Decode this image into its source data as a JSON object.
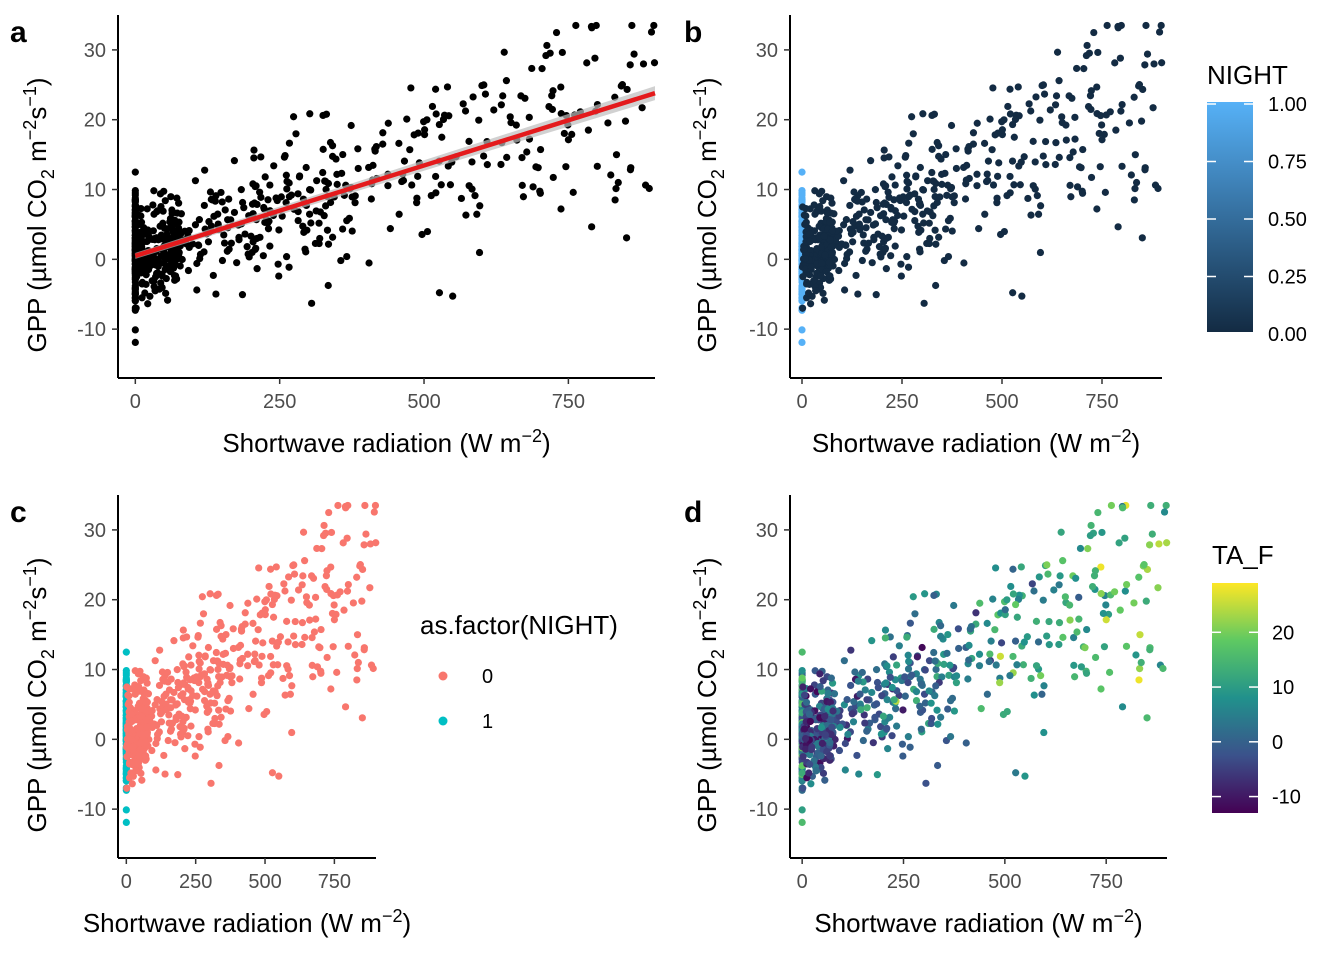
{
  "chart_data": [
    {
      "panel": "a",
      "type": "scatter",
      "title": "",
      "xlabel": "Shortwave radiation (W m^-2)",
      "ylabel": "GPP (µmol CO2 m^-2 s^-1)",
      "xlim": [
        -30,
        900
      ],
      "ylim": [
        -17,
        35
      ],
      "xticks": [
        0,
        250,
        500,
        750
      ],
      "yticks": [
        -10,
        0,
        10,
        20,
        30
      ],
      "point_color": "#000000",
      "regression_line": {
        "x": [
          0,
          900
        ],
        "y": [
          0.5,
          23.8
        ],
        "color": "#e41a1c",
        "ci_color": "#bdbdbd"
      },
      "color_mapping": "none"
    },
    {
      "panel": "b",
      "type": "scatter",
      "xlabel": "Shortwave radiation (W m^-2)",
      "ylabel": "GPP (µmol CO2 m^-2 s^-1)",
      "xlim": [
        -30,
        900
      ],
      "ylim": [
        -17,
        35
      ],
      "xticks": [
        0,
        250,
        500,
        750
      ],
      "yticks": [
        -10,
        0,
        10,
        20,
        30
      ],
      "color_mapping": "NIGHT (continuous)",
      "legend": {
        "title": "NIGHT",
        "ticks": [
          "1.00",
          "0.75",
          "0.50",
          "0.25",
          "0.00"
        ],
        "low_color": "#132b43",
        "high_color": "#56b1f7",
        "position": "right"
      }
    },
    {
      "panel": "c",
      "type": "scatter",
      "xlabel": "Shortwave radiation (W m^-2)",
      "ylabel": "GPP (µmol CO2 m^-2 s^-1)",
      "xlim": [
        -30,
        900
      ],
      "ylim": [
        -17,
        35
      ],
      "xticks": [
        0,
        250,
        500,
        750
      ],
      "yticks": [
        -10,
        0,
        10,
        20,
        30
      ],
      "color_mapping": "as.factor(NIGHT)",
      "legend": {
        "title": "as.factor(NIGHT)",
        "entries": [
          {
            "label": "0",
            "color": "#f8766d"
          },
          {
            "label": "1",
            "color": "#00bfc4"
          }
        ],
        "position": "right"
      }
    },
    {
      "panel": "d",
      "type": "scatter",
      "xlabel": "Shortwave radiation (W m^-2)",
      "ylabel": "GPP (µmol CO2 m^-2 s^-1)",
      "xlim": [
        -30,
        900
      ],
      "ylim": [
        -17,
        35
      ],
      "xticks": [
        0,
        250,
        500,
        750
      ],
      "yticks": [
        -10,
        0,
        10,
        20,
        30
      ],
      "color_mapping": "TA_F (continuous, viridis)",
      "legend": {
        "title": "TA_F",
        "ticks": [
          "20",
          "10",
          "0",
          "-10"
        ],
        "range": [
          -13,
          29
        ],
        "position": "right"
      }
    }
  ],
  "labels": {
    "panel_a": "a",
    "panel_b": "b",
    "panel_c": "c",
    "panel_d": "d",
    "xlabel_main": "Shortwave radiation (W m",
    "xlabel_sup": "−2",
    "xlabel_close": ")",
    "ylabel_prefix": "GPP (µmol CO",
    "ylabel_sub": "2",
    "ylabel_mid": " m",
    "ylabel_sup1": "−2",
    "ylabel_s": "s",
    "ylabel_sup2": "−1",
    "ylabel_close": ")",
    "xtick_labels": [
      "0",
      "250",
      "500",
      "750"
    ],
    "ytick_labels": [
      "-10",
      "0",
      "10",
      "20",
      "30"
    ],
    "legend_b_title": "NIGHT",
    "legend_b_ticks": [
      "1.00",
      "0.75",
      "0.50",
      "0.25",
      "0.00"
    ],
    "legend_c_title": "as.factor(NIGHT)",
    "legend_c_entries": [
      "0",
      "1"
    ],
    "legend_d_title": "TA_F",
    "legend_d_ticks": [
      "20",
      "10",
      "0",
      "-10"
    ]
  }
}
